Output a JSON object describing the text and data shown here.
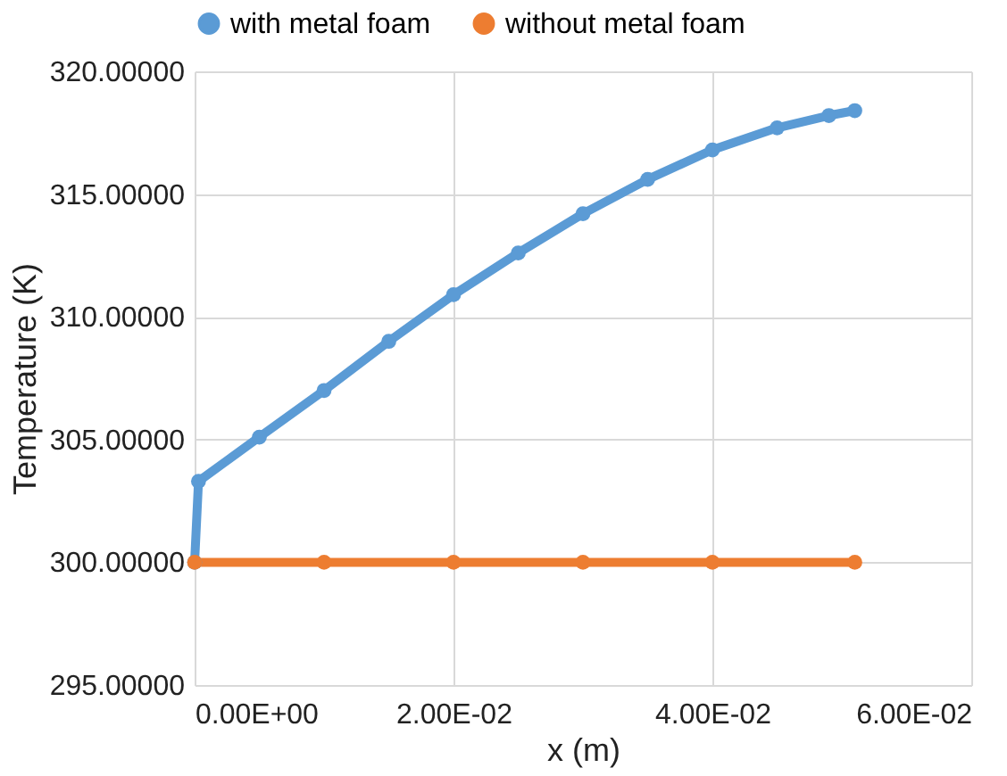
{
  "chart_data": {
    "type": "line",
    "xlabel": "x (m)",
    "ylabel": "Temperature (K)",
    "xlim": [
      0,
      0.06
    ],
    "xticks": [
      {
        "value": 0,
        "label": "0.00E+00"
      },
      {
        "value": 0.02,
        "label": "2.00E-02"
      },
      {
        "value": 0.04,
        "label": "4.00E-02"
      },
      {
        "value": 0.06,
        "label": "6.00E-02"
      }
    ],
    "ylim": [
      295,
      320
    ],
    "yticks": [
      {
        "value": 295,
        "label": "295.00000"
      },
      {
        "value": 300,
        "label": "300.00000"
      },
      {
        "value": 305,
        "label": "305.00000"
      },
      {
        "value": 310,
        "label": "310.00000"
      },
      {
        "value": 315,
        "label": "315.00000"
      },
      {
        "value": 320,
        "label": "320.00000"
      }
    ],
    "grid": true,
    "legend": "top",
    "marker": "circle",
    "line_style": "solid",
    "series": [
      {
        "name": "with metal foam",
        "color": "#5b9bd5",
        "x": [
          0,
          0.0003,
          0.005,
          0.01,
          0.015,
          0.02,
          0.025,
          0.03,
          0.035,
          0.04,
          0.045,
          0.049,
          0.051
        ],
        "values": [
          300,
          303.3,
          305.1,
          307.0,
          309.0,
          310.9,
          312.6,
          314.2,
          315.6,
          316.8,
          317.7,
          318.2,
          318.4
        ]
      },
      {
        "name": "without metal foam",
        "color": "#ed7d31",
        "x": [
          0,
          0.01,
          0.02,
          0.03,
          0.04,
          0.051
        ],
        "values": [
          300,
          300,
          300,
          300,
          300,
          300
        ]
      }
    ]
  }
}
